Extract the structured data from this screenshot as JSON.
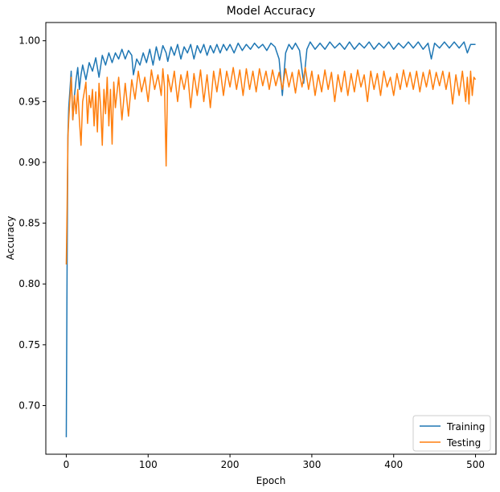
{
  "chart_data": {
    "type": "line",
    "title": "Model Accuracy",
    "xlabel": "Epoch",
    "ylabel": "Accuracy",
    "xlim": [
      -25,
      525
    ],
    "ylim": [
      0.66,
      1.015
    ],
    "x_ticks": [
      0,
      100,
      200,
      300,
      400,
      500
    ],
    "y_ticks": [
      0.7,
      0.75,
      0.8,
      0.85,
      0.9,
      0.95,
      1.0
    ],
    "y_tick_labels": [
      "0.70",
      "0.75",
      "0.80",
      "0.85",
      "0.90",
      "0.95",
      "1.00"
    ],
    "grid": false,
    "legend_position": "lower-right",
    "series": [
      {
        "name": "Training",
        "color": "#1f77b4",
        "points": [
          [
            0,
            0.674
          ],
          [
            1,
            0.815
          ],
          [
            2,
            0.922
          ],
          [
            3,
            0.945
          ],
          [
            5,
            0.965
          ],
          [
            6,
            0.975
          ],
          [
            8,
            0.935
          ],
          [
            10,
            0.955
          ],
          [
            12,
            0.968
          ],
          [
            14,
            0.978
          ],
          [
            16,
            0.96
          ],
          [
            18,
            0.972
          ],
          [
            20,
            0.98
          ],
          [
            24,
            0.968
          ],
          [
            28,
            0.982
          ],
          [
            32,
            0.975
          ],
          [
            36,
            0.986
          ],
          [
            40,
            0.97
          ],
          [
            44,
            0.988
          ],
          [
            48,
            0.98
          ],
          [
            52,
            0.99
          ],
          [
            56,
            0.982
          ],
          [
            60,
            0.99
          ],
          [
            64,
            0.985
          ],
          [
            68,
            0.993
          ],
          [
            72,
            0.985
          ],
          [
            76,
            0.992
          ],
          [
            80,
            0.988
          ],
          [
            82,
            0.972
          ],
          [
            86,
            0.985
          ],
          [
            90,
            0.98
          ],
          [
            94,
            0.99
          ],
          [
            98,
            0.982
          ],
          [
            102,
            0.993
          ],
          [
            106,
            0.98
          ],
          [
            110,
            0.995
          ],
          [
            114,
            0.984
          ],
          [
            118,
            0.996
          ],
          [
            122,
            0.99
          ],
          [
            124,
            0.983
          ],
          [
            128,
            0.995
          ],
          [
            132,
            0.988
          ],
          [
            136,
            0.997
          ],
          [
            140,
            0.985
          ],
          [
            144,
            0.995
          ],
          [
            148,
            0.99
          ],
          [
            152,
            0.997
          ],
          [
            156,
            0.985
          ],
          [
            160,
            0.996
          ],
          [
            164,
            0.99
          ],
          [
            168,
            0.997
          ],
          [
            172,
            0.988
          ],
          [
            176,
            0.996
          ],
          [
            180,
            0.99
          ],
          [
            184,
            0.997
          ],
          [
            188,
            0.99
          ],
          [
            192,
            0.997
          ],
          [
            196,
            0.992
          ],
          [
            200,
            0.997
          ],
          [
            205,
            0.99
          ],
          [
            210,
            0.998
          ],
          [
            215,
            0.992
          ],
          [
            220,
            0.997
          ],
          [
            225,
            0.993
          ],
          [
            230,
            0.998
          ],
          [
            235,
            0.994
          ],
          [
            240,
            0.997
          ],
          [
            245,
            0.992
          ],
          [
            250,
            0.998
          ],
          [
            255,
            0.995
          ],
          [
            260,
            0.985
          ],
          [
            264,
            0.955
          ],
          [
            268,
            0.99
          ],
          [
            272,
            0.997
          ],
          [
            276,
            0.993
          ],
          [
            280,
            0.998
          ],
          [
            285,
            0.992
          ],
          [
            290,
            0.965
          ],
          [
            294,
            0.993
          ],
          [
            298,
            0.999
          ],
          [
            304,
            0.993
          ],
          [
            310,
            0.998
          ],
          [
            316,
            0.993
          ],
          [
            322,
            0.999
          ],
          [
            328,
            0.994
          ],
          [
            334,
            0.998
          ],
          [
            340,
            0.993
          ],
          [
            346,
            0.999
          ],
          [
            352,
            0.993
          ],
          [
            358,
            0.998
          ],
          [
            364,
            0.994
          ],
          [
            370,
            0.999
          ],
          [
            376,
            0.993
          ],
          [
            382,
            0.998
          ],
          [
            388,
            0.994
          ],
          [
            394,
            0.999
          ],
          [
            400,
            0.993
          ],
          [
            406,
            0.998
          ],
          [
            412,
            0.994
          ],
          [
            418,
            0.999
          ],
          [
            424,
            0.994
          ],
          [
            430,
            0.999
          ],
          [
            436,
            0.993
          ],
          [
            442,
            0.998
          ],
          [
            446,
            0.985
          ],
          [
            450,
            0.998
          ],
          [
            456,
            0.994
          ],
          [
            462,
            0.999
          ],
          [
            468,
            0.994
          ],
          [
            474,
            0.999
          ],
          [
            480,
            0.994
          ],
          [
            486,
            0.999
          ],
          [
            490,
            0.99
          ],
          [
            494,
            0.997
          ],
          [
            500,
            0.997
          ]
        ]
      },
      {
        "name": "Testing",
        "color": "#ff7f0e",
        "points": [
          [
            0,
            0.816
          ],
          [
            1,
            0.862
          ],
          [
            2,
            0.92
          ],
          [
            3,
            0.935
          ],
          [
            5,
            0.958
          ],
          [
            6,
            0.97
          ],
          [
            8,
            0.935
          ],
          [
            10,
            0.955
          ],
          [
            12,
            0.94
          ],
          [
            14,
            0.96
          ],
          [
            16,
            0.935
          ],
          [
            18,
            0.914
          ],
          [
            20,
            0.95
          ],
          [
            24,
            0.966
          ],
          [
            26,
            0.932
          ],
          [
            28,
            0.955
          ],
          [
            30,
            0.945
          ],
          [
            32,
            0.96
          ],
          [
            34,
            0.93
          ],
          [
            36,
            0.958
          ],
          [
            38,
            0.925
          ],
          [
            40,
            0.965
          ],
          [
            42,
            0.945
          ],
          [
            44,
            0.914
          ],
          [
            46,
            0.96
          ],
          [
            48,
            0.94
          ],
          [
            50,
            0.97
          ],
          [
            52,
            0.93
          ],
          [
            54,
            0.96
          ],
          [
            56,
            0.915
          ],
          [
            58,
            0.966
          ],
          [
            60,
            0.945
          ],
          [
            64,
            0.97
          ],
          [
            68,
            0.935
          ],
          [
            72,
            0.965
          ],
          [
            76,
            0.938
          ],
          [
            80,
            0.968
          ],
          [
            84,
            0.952
          ],
          [
            88,
            0.975
          ],
          [
            92,
            0.958
          ],
          [
            96,
            0.97
          ],
          [
            100,
            0.95
          ],
          [
            104,
            0.976
          ],
          [
            108,
            0.96
          ],
          [
            112,
            0.972
          ],
          [
            116,
            0.955
          ],
          [
            118,
            0.977
          ],
          [
            120,
            0.962
          ],
          [
            122,
            0.897
          ],
          [
            124,
            0.972
          ],
          [
            128,
            0.958
          ],
          [
            132,
            0.975
          ],
          [
            136,
            0.95
          ],
          [
            140,
            0.972
          ],
          [
            144,
            0.96
          ],
          [
            148,
            0.975
          ],
          [
            152,
            0.945
          ],
          [
            156,
            0.973
          ],
          [
            160,
            0.955
          ],
          [
            164,
            0.976
          ],
          [
            168,
            0.95
          ],
          [
            172,
            0.972
          ],
          [
            176,
            0.945
          ],
          [
            180,
            0.975
          ],
          [
            184,
            0.958
          ],
          [
            188,
            0.977
          ],
          [
            192,
            0.955
          ],
          [
            196,
            0.975
          ],
          [
            200,
            0.962
          ],
          [
            204,
            0.978
          ],
          [
            208,
            0.96
          ],
          [
            212,
            0.976
          ],
          [
            216,
            0.955
          ],
          [
            220,
            0.977
          ],
          [
            224,
            0.96
          ],
          [
            228,
            0.975
          ],
          [
            232,
            0.958
          ],
          [
            236,
            0.977
          ],
          [
            240,
            0.963
          ],
          [
            244,
            0.975
          ],
          [
            248,
            0.96
          ],
          [
            252,
            0.976
          ],
          [
            256,
            0.963
          ],
          [
            260,
            0.974
          ],
          [
            264,
            0.96
          ],
          [
            268,
            0.977
          ],
          [
            272,
            0.962
          ],
          [
            276,
            0.974
          ],
          [
            280,
            0.957
          ],
          [
            284,
            0.976
          ],
          [
            288,
            0.962
          ],
          [
            292,
            0.978
          ],
          [
            296,
            0.96
          ],
          [
            300,
            0.975
          ],
          [
            304,
            0.955
          ],
          [
            308,
            0.972
          ],
          [
            312,
            0.958
          ],
          [
            316,
            0.976
          ],
          [
            320,
            0.96
          ],
          [
            324,
            0.974
          ],
          [
            328,
            0.95
          ],
          [
            332,
            0.972
          ],
          [
            336,
            0.958
          ],
          [
            340,
            0.975
          ],
          [
            344,
            0.955
          ],
          [
            348,
            0.973
          ],
          [
            352,
            0.958
          ],
          [
            356,
            0.976
          ],
          [
            360,
            0.962
          ],
          [
            364,
            0.972
          ],
          [
            368,
            0.95
          ],
          [
            372,
            0.975
          ],
          [
            376,
            0.96
          ],
          [
            380,
            0.973
          ],
          [
            384,
            0.955
          ],
          [
            388,
            0.975
          ],
          [
            392,
            0.962
          ],
          [
            396,
            0.97
          ],
          [
            400,
            0.955
          ],
          [
            404,
            0.973
          ],
          [
            408,
            0.96
          ],
          [
            412,
            0.976
          ],
          [
            416,
            0.962
          ],
          [
            420,
            0.974
          ],
          [
            424,
            0.96
          ],
          [
            428,
            0.975
          ],
          [
            432,
            0.958
          ],
          [
            436,
            0.974
          ],
          [
            440,
            0.962
          ],
          [
            444,
            0.976
          ],
          [
            448,
            0.96
          ],
          [
            452,
            0.974
          ],
          [
            456,
            0.963
          ],
          [
            460,
            0.975
          ],
          [
            464,
            0.96
          ],
          [
            468,
            0.974
          ],
          [
            472,
            0.948
          ],
          [
            476,
            0.972
          ],
          [
            480,
            0.955
          ],
          [
            484,
            0.975
          ],
          [
            488,
            0.95
          ],
          [
            490,
            0.97
          ],
          [
            492,
            0.948
          ],
          [
            494,
            0.975
          ],
          [
            496,
            0.955
          ],
          [
            498,
            0.97
          ],
          [
            500,
            0.968
          ]
        ]
      }
    ]
  }
}
